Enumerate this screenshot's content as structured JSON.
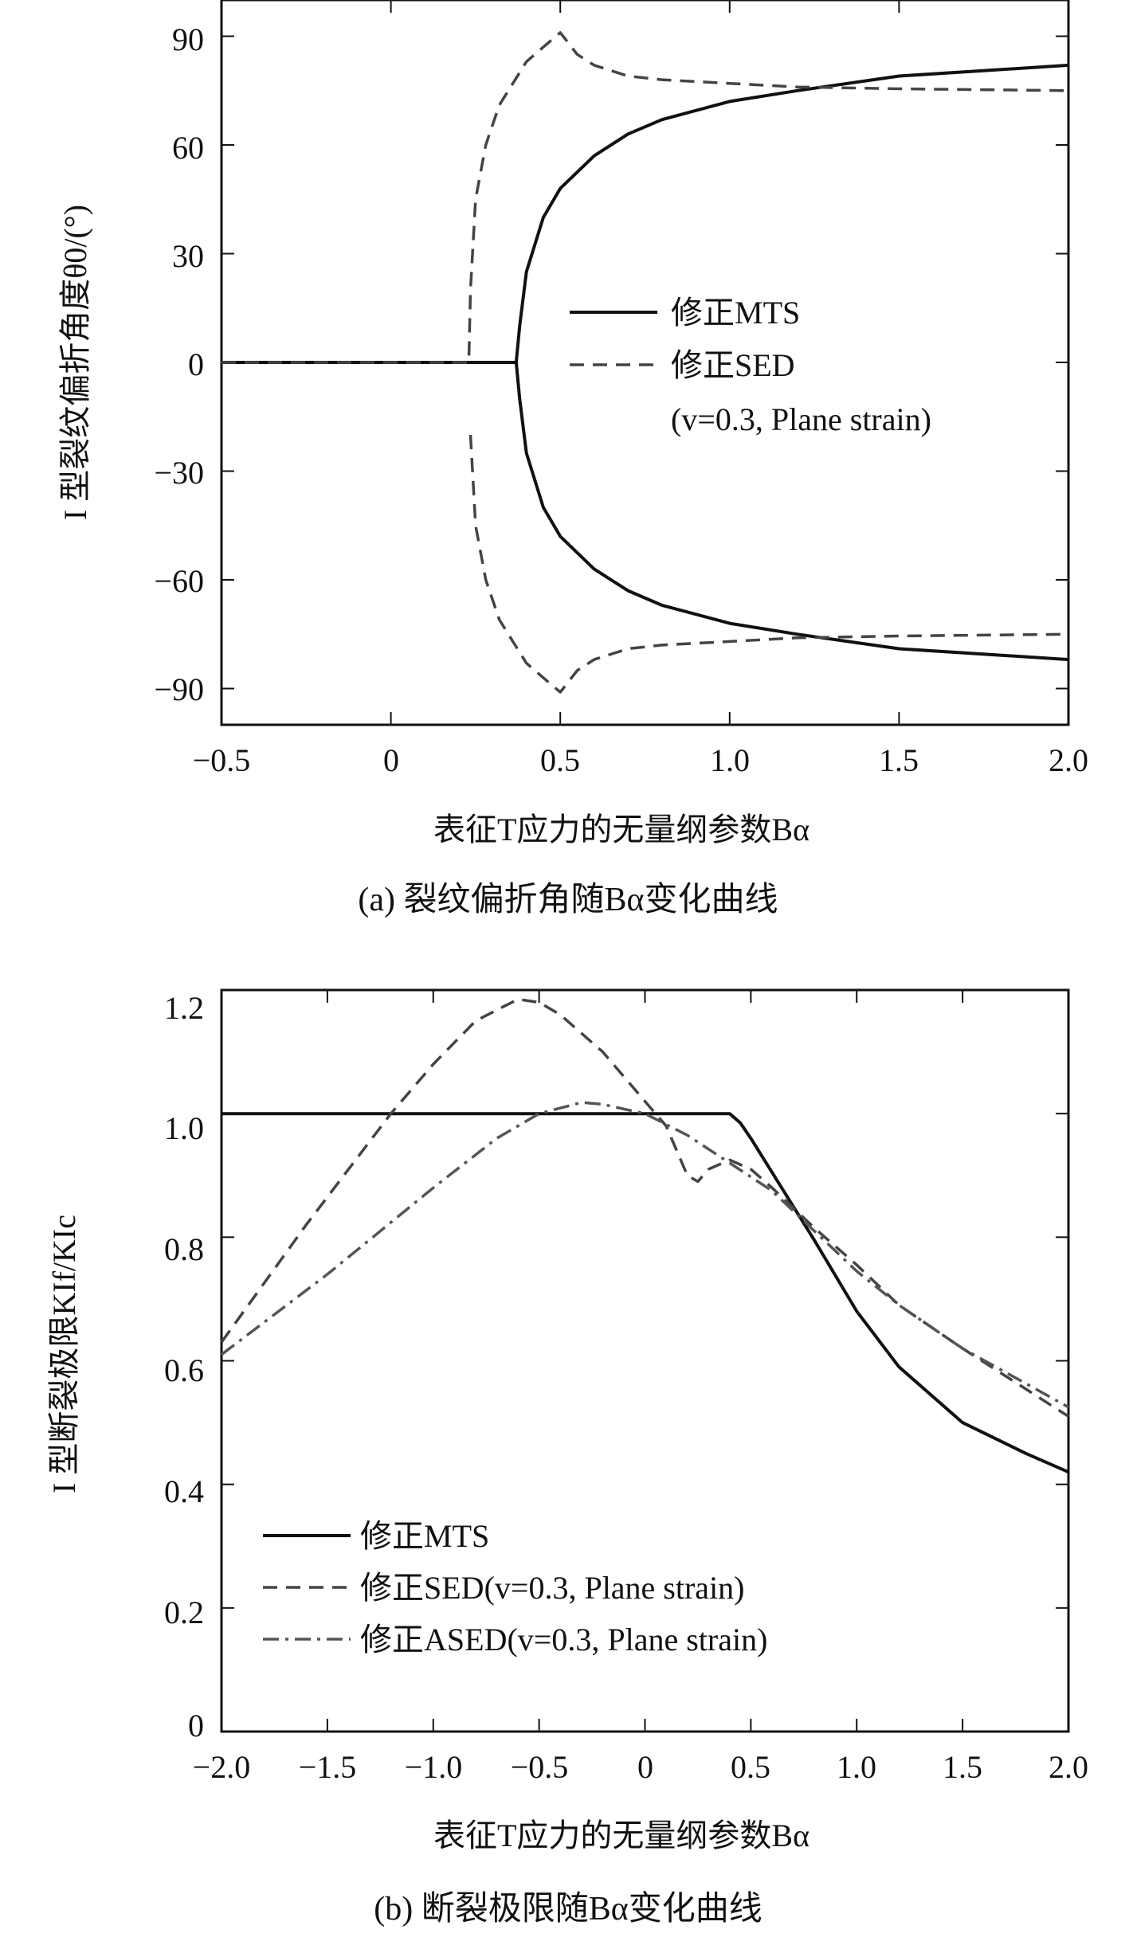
{
  "chart_data": [
    {
      "type": "line",
      "caption": "(a) 裂纹偏折角随Bα变化曲线",
      "xlabel": "表征T应力的无量纲参数Bα",
      "ylabel": "I 型裂纹偏折角度θ0/(°)",
      "xlim": [
        -0.5,
        2.0
      ],
      "ylim": [
        -100,
        100
      ],
      "xticks": [
        "−0.5",
        "0",
        "0.5",
        "1.0",
        "1.5",
        "2.0"
      ],
      "xtick_values": [
        -0.5,
        0,
        0.5,
        1.0,
        1.5,
        2.0
      ],
      "yticks": [
        "90",
        "60",
        "30",
        "0",
        "−30",
        "−60",
        "−90"
      ],
      "ytick_values": [
        90,
        60,
        30,
        0,
        -30,
        -60,
        -90
      ],
      "legend": {
        "position": "center-right",
        "entries": [
          {
            "label": "修正MTS",
            "style": "solid"
          },
          {
            "label": "修正SED",
            "style": "dashed"
          }
        ],
        "note": "(v=0.3, Plane strain)"
      },
      "series": [
        {
          "name": "修正MTS",
          "style": "solid",
          "color": "#111111",
          "x": [
            -0.5,
            0,
            0.3,
            0.37,
            0.38,
            0.4,
            0.45,
            0.5,
            0.6,
            0.7,
            0.8,
            1.0,
            1.2,
            1.5,
            2.0
          ],
          "y": [
            0,
            0,
            0,
            0,
            10,
            25,
            40,
            48,
            57,
            63,
            67,
            72,
            75,
            79,
            82
          ]
        },
        {
          "name": "修正MTS",
          "style": "solid",
          "color": "#111111",
          "x": [
            0.37,
            0.38,
            0.4,
            0.45,
            0.5,
            0.6,
            0.7,
            0.8,
            1.0,
            1.2,
            1.5,
            2.0
          ],
          "y": [
            0,
            -10,
            -25,
            -40,
            -48,
            -57,
            -63,
            -67,
            -72,
            -75,
            -79,
            -82
          ]
        },
        {
          "name": "修正SED",
          "style": "dashed",
          "color": "#444444",
          "x": [
            -0.5,
            0.23,
            0.235,
            0.25,
            0.28,
            0.32,
            0.36,
            0.4,
            0.45,
            0.5,
            0.55,
            0.6,
            0.7,
            0.8,
            1.0,
            1.2,
            1.5,
            2.0
          ],
          "y": [
            0,
            0,
            20,
            45,
            60,
            71,
            77,
            83,
            87,
            91,
            85,
            82,
            79,
            78,
            77,
            76,
            75.5,
            75
          ]
        },
        {
          "name": "修正SED",
          "style": "dashed",
          "color": "#444444",
          "x": [
            0.235,
            0.25,
            0.28,
            0.32,
            0.36,
            0.4,
            0.45,
            0.5,
            0.55,
            0.6,
            0.7,
            0.8,
            1.0,
            1.2,
            1.5,
            2.0
          ],
          "y": [
            -20,
            -45,
            -60,
            -71,
            -77,
            -83,
            -87,
            -91,
            -85,
            -82,
            -79,
            -78,
            -77,
            -76,
            -75.5,
            -75
          ]
        }
      ]
    },
    {
      "type": "line",
      "caption": "(b) 断裂极限随Bα变化曲线",
      "xlabel": "表征T应力的无量纲参数Bα",
      "ylabel": "I 型断裂极限KIf/KIc",
      "xlim": [
        -2.0,
        2.0
      ],
      "ylim": [
        0,
        1.2
      ],
      "xticks": [
        "−2.0",
        "−1.5",
        "−1.0",
        "−0.5",
        "0",
        "0.5",
        "1.0",
        "1.5",
        "2.0"
      ],
      "xtick_values": [
        -2.0,
        -1.5,
        -1.0,
        -0.5,
        0,
        0.5,
        1.0,
        1.5,
        2.0
      ],
      "yticks": [
        "1.2",
        "1.0",
        "0.8",
        "0.6",
        "0.4",
        "0.2",
        "0"
      ],
      "ytick_values": [
        1.2,
        1.0,
        0.8,
        0.6,
        0.4,
        0.2,
        0
      ],
      "legend": {
        "position": "bottom-left",
        "entries": [
          {
            "label": "修正MTS",
            "style": "solid"
          },
          {
            "label": "修正SED(v=0.3, Plane strain)",
            "style": "dashed"
          },
          {
            "label": "修正ASED(v=0.3, Plane strain)",
            "style": "dashdot"
          }
        ]
      },
      "series": [
        {
          "name": "修正MTS",
          "style": "solid",
          "color": "#111111",
          "x": [
            -2.0,
            0.4,
            0.45,
            0.5,
            0.6,
            0.7,
            0.8,
            1.0,
            1.2,
            1.5,
            1.8,
            2.0
          ],
          "y": [
            1.0,
            1.0,
            0.985,
            0.96,
            0.905,
            0.85,
            0.795,
            0.68,
            0.59,
            0.5,
            0.45,
            0.42
          ]
        },
        {
          "name": "修正SED(v=0.3, Plane strain)",
          "style": "dashed",
          "color": "#444444",
          "x": [
            -2.0,
            -1.6,
            -1.2,
            -1.0,
            -0.8,
            -0.6,
            -0.5,
            -0.4,
            -0.3,
            -0.2,
            -0.1,
            0,
            0.1,
            0.2,
            0.25,
            0.3,
            0.4,
            0.5,
            0.6,
            0.8,
            1.0,
            1.2,
            1.5,
            2.0
          ],
          "y": [
            0.63,
            0.82,
            1.0,
            1.08,
            1.15,
            1.185,
            1.18,
            1.16,
            1.13,
            1.1,
            1.06,
            1.02,
            0.98,
            0.9,
            0.89,
            0.91,
            0.925,
            0.91,
            0.88,
            0.815,
            0.755,
            0.69,
            0.62,
            0.51
          ]
        },
        {
          "name": "修正ASED(v=0.3, Plane strain)",
          "style": "dashdot",
          "color": "#555555",
          "x": [
            -2.0,
            -1.5,
            -1.0,
            -0.7,
            -0.5,
            -0.3,
            -0.2,
            0,
            0.2,
            0.4,
            0.6,
            0.8,
            1.0,
            1.2,
            1.5,
            2.0
          ],
          "y": [
            0.61,
            0.74,
            0.88,
            0.96,
            1.0,
            1.018,
            1.015,
            1.0,
            0.965,
            0.92,
            0.875,
            0.81,
            0.745,
            0.69,
            0.62,
            0.525
          ]
        }
      ]
    }
  ]
}
